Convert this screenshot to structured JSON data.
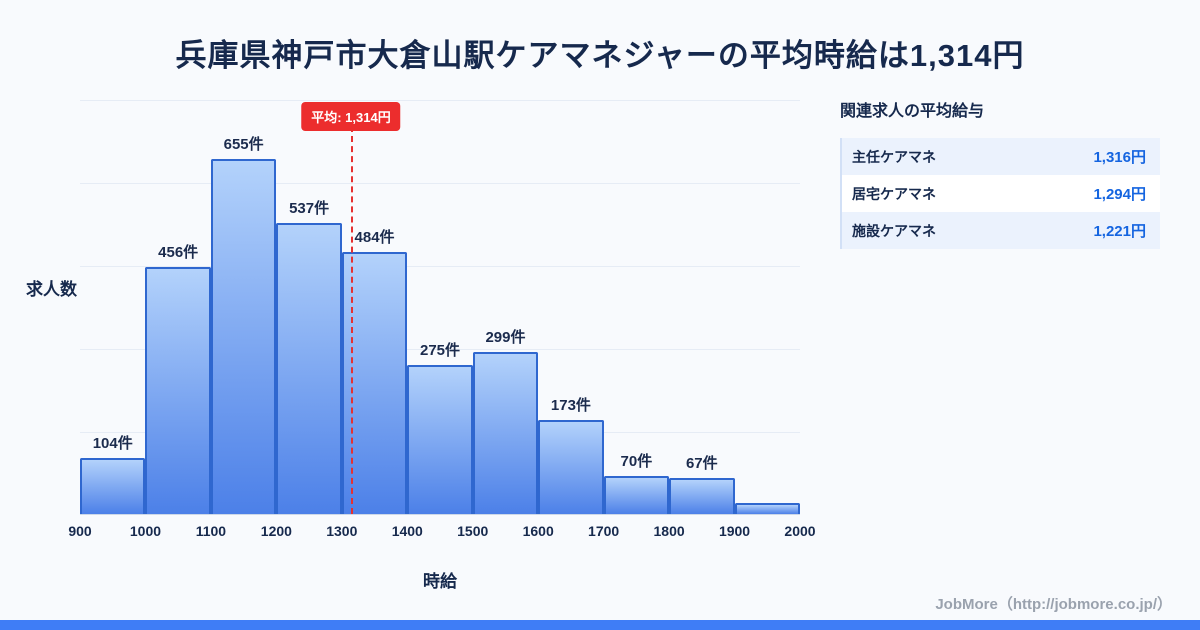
{
  "title": "兵庫県神戸市大倉山駅ケアマネジャーの平均時給は1,314円",
  "chart_data": {
    "type": "bar",
    "title": "兵庫県神戸市大倉山駅ケアマネジャーの平均時給は1,314円",
    "xlabel": "時給",
    "ylabel": "求人数",
    "x_ticks": [
      "900",
      "1000",
      "1100",
      "1200",
      "1300",
      "1400",
      "1500",
      "1600",
      "1700",
      "1800",
      "1900",
      "2000"
    ],
    "x_range": [
      900,
      2000
    ],
    "bin_width": 100,
    "values": [
      104,
      456,
      655,
      537,
      484,
      275,
      299,
      173,
      70,
      67,
      20
    ],
    "bar_labels": [
      "104件",
      "456件",
      "655件",
      "537件",
      "484件",
      "275件",
      "299件",
      "173件",
      "70件",
      "67件",
      ""
    ],
    "average": {
      "value": 1314,
      "label": "平均: 1,314円"
    },
    "grid": true,
    "legend": "none",
    "colors": {
      "bar_fill_top": "#b3d2fb",
      "bar_fill_bottom": "#4c80e8",
      "bar_border": "#2f67cf",
      "average_line": "#e63030"
    }
  },
  "side_panel": {
    "title": "関連求人の平均給与",
    "rows": [
      {
        "label": "主任ケアマネ",
        "value": "1,316円"
      },
      {
        "label": "居宅ケアマネ",
        "value": "1,294円"
      },
      {
        "label": "施設ケアマネ",
        "value": "1,221円"
      }
    ]
  },
  "footer": {
    "credit": "JobMore（http://jobmore.co.jp/）"
  },
  "colors": {
    "accent_blue": "#3f7df6",
    "title_navy": "#16294d",
    "value_blue": "#1565e0"
  }
}
